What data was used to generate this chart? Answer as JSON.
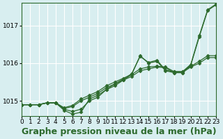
{
  "bg_color": "#d8eef0",
  "grid_color": "#ffffff",
  "line_color": "#2d6a2d",
  "xlabel": "Graphe pression niveau de la mer (hPa)",
  "xlabel_fontsize": 9,
  "tick_fontsize": 6.5,
  "ylim": [
    1014.6,
    1017.6
  ],
  "xlim": [
    0,
    23
  ],
  "yticks": [
    1015,
    1016,
    1017
  ],
  "xticks": [
    0,
    1,
    2,
    3,
    4,
    5,
    6,
    7,
    8,
    9,
    10,
    11,
    12,
    13,
    14,
    15,
    16,
    17,
    18,
    19,
    20,
    21,
    22,
    23
  ],
  "series": [
    [
      1014.9,
      1014.9,
      1014.9,
      1014.95,
      1014.95,
      1014.75,
      1014.65,
      1014.7,
      1015.05,
      1015.15,
      1015.3,
      1015.4,
      1015.55,
      1015.7,
      1016.2,
      1016.0,
      1016.05,
      1015.8,
      1015.75,
      1015.75,
      1015.95,
      1016.7,
      1017.4,
      1017.55
    ],
    [
      1014.9,
      1014.9,
      1014.9,
      1014.95,
      1014.95,
      1014.8,
      1014.85,
      1015.0,
      1015.1,
      1015.2,
      1015.35,
      1015.45,
      1015.55,
      1015.65,
      1015.8,
      1015.85,
      1015.9,
      1015.88,
      1015.75,
      1015.75,
      1015.9,
      1016.0,
      1016.15,
      1016.15
    ],
    [
      1014.9,
      1014.9,
      1014.9,
      1014.95,
      1014.95,
      1014.82,
      1014.88,
      1015.05,
      1015.15,
      1015.25,
      1015.4,
      1015.5,
      1015.6,
      1015.7,
      1015.85,
      1015.9,
      1015.92,
      1015.9,
      1015.78,
      1015.78,
      1015.92,
      1016.05,
      1016.2,
      1016.2
    ],
    [
      1014.9,
      1014.9,
      1014.9,
      1014.95,
      1014.95,
      1014.78,
      1014.72,
      1014.78,
      1015.0,
      1015.1,
      1015.3,
      1015.45,
      1015.58,
      1015.72,
      1016.18,
      1016.02,
      1016.08,
      1015.82,
      1015.77,
      1015.77,
      1015.97,
      1016.73,
      1017.42,
      1017.57
    ]
  ]
}
